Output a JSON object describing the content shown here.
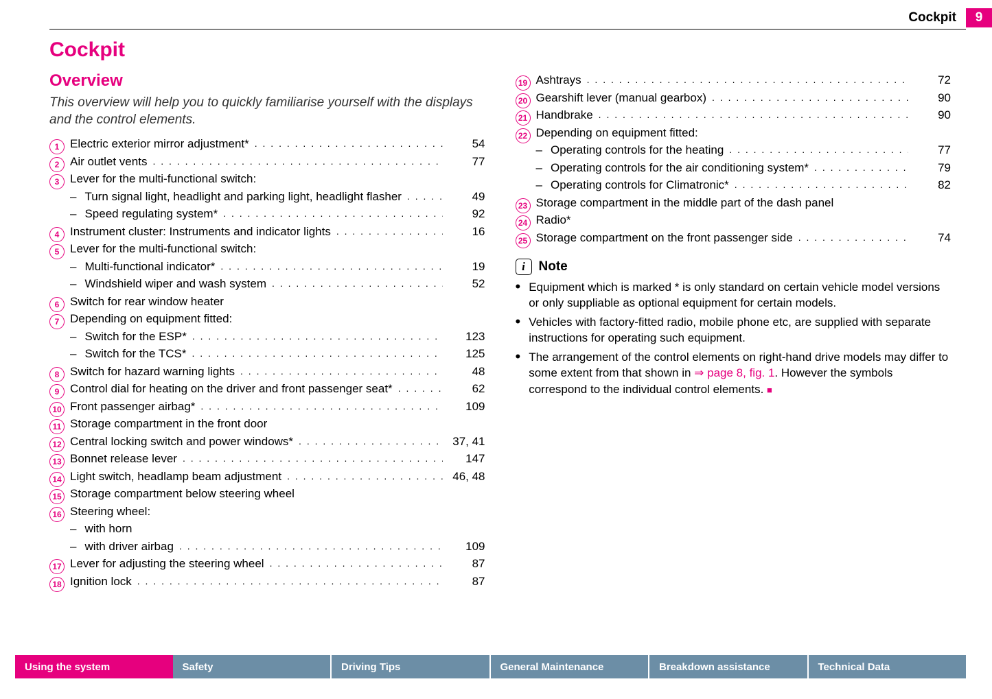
{
  "header": {
    "section": "Cockpit",
    "page_number": "9"
  },
  "h1": "Cockpit",
  "h2": "Overview",
  "intro": "This overview will help you to quickly familiarise yourself with the displays and the control elements.",
  "col1": [
    {
      "n": "1",
      "label": "Electric exterior mirror adjustment*",
      "page": "54"
    },
    {
      "n": "2",
      "label": "Air outlet vents",
      "page": "77"
    },
    {
      "n": "3",
      "label": "Lever for the multi-functional switch:",
      "page": ""
    },
    {
      "sub": true,
      "label": "Turn signal light, headlight and parking light, headlight flasher",
      "page": "49"
    },
    {
      "sub": true,
      "label": "Speed regulating system*",
      "page": "92"
    },
    {
      "n": "4",
      "label": "Instrument cluster: Instruments and indicator lights",
      "page": "16"
    },
    {
      "n": "5",
      "label": "Lever for the multi-functional switch:",
      "page": ""
    },
    {
      "sub": true,
      "label": "Multi-functional indicator*",
      "page": "19"
    },
    {
      "sub": true,
      "label": "Windshield wiper and wash system",
      "page": "52"
    },
    {
      "n": "6",
      "label": "Switch for rear window heater",
      "page": ""
    },
    {
      "n": "7",
      "label": "Depending on equipment fitted:",
      "page": ""
    },
    {
      "sub": true,
      "label": "Switch for the ESP*",
      "page": "123"
    },
    {
      "sub": true,
      "label": "Switch for the TCS*",
      "page": "125"
    },
    {
      "n": "8",
      "label": "Switch for hazard warning lights",
      "page": "48"
    },
    {
      "n": "9",
      "label": "Control dial for heating on the driver and front passenger seat*",
      "page": "62"
    },
    {
      "n": "10",
      "label": "Front passenger airbag*",
      "page": "109"
    },
    {
      "n": "11",
      "label": "Storage compartment in the front door",
      "page": ""
    },
    {
      "n": "12",
      "label": "Central locking switch and power windows*",
      "page": "37, 41"
    },
    {
      "n": "13",
      "label": "Bonnet release lever",
      "page": "147"
    },
    {
      "n": "14",
      "label": "Light switch, headlamp beam adjustment",
      "page": "46, 48"
    },
    {
      "n": "15",
      "label": "Storage compartment below steering wheel",
      "page": ""
    },
    {
      "n": "16",
      "label": "Steering wheel:",
      "page": ""
    },
    {
      "sub": true,
      "label": "with horn",
      "page": ""
    },
    {
      "sub": true,
      "label": "with driver airbag",
      "page": "109"
    },
    {
      "n": "17",
      "label": "Lever for adjusting the steering wheel",
      "page": "87"
    },
    {
      "n": "18",
      "label": "Ignition lock",
      "page": "87"
    }
  ],
  "col2": [
    {
      "n": "19",
      "label": "Ashtrays",
      "page": "72"
    },
    {
      "n": "20",
      "label": "Gearshift lever (manual gearbox)",
      "page": "90"
    },
    {
      "n": "21",
      "label": "Handbrake",
      "page": "90"
    },
    {
      "n": "22",
      "label": "Depending on equipment fitted:",
      "page": ""
    },
    {
      "sub": true,
      "label": "Operating controls for the heating",
      "page": "77"
    },
    {
      "sub": true,
      "label": "Operating controls for the air conditioning system*",
      "page": "79"
    },
    {
      "sub": true,
      "label": "Operating controls for Climatronic*",
      "page": "82"
    },
    {
      "n": "23",
      "label": "Storage compartment in the middle part of the dash panel",
      "page": ""
    },
    {
      "n": "24",
      "label": "Radio*",
      "page": ""
    },
    {
      "n": "25",
      "label": "Storage compartment on the front passenger side",
      "page": "74"
    }
  ],
  "note": {
    "title": "Note",
    "bullets": [
      "Equipment which is marked * is only standard on certain vehicle model versions or only suppliable as optional equipment for certain models.",
      "Vehicles with factory-fitted radio, mobile phone etc, are supplied with separate instructions for operating such equipment."
    ],
    "bullet3_pre": "The arrangement of the control elements on right-hand drive models may differ to some extent from that shown in ",
    "bullet3_link": "⇒ page 8, fig. 1",
    "bullet3_post": ". However the symbols correspond to the individual control elements. "
  },
  "tabs": [
    "Using the system",
    "Safety",
    "Driving Tips",
    "General Maintenance",
    "Breakdown assistance",
    "Technical Data"
  ],
  "colors": {
    "accent": "#e6007e",
    "tab_inactive": "#6c8ea6"
  }
}
